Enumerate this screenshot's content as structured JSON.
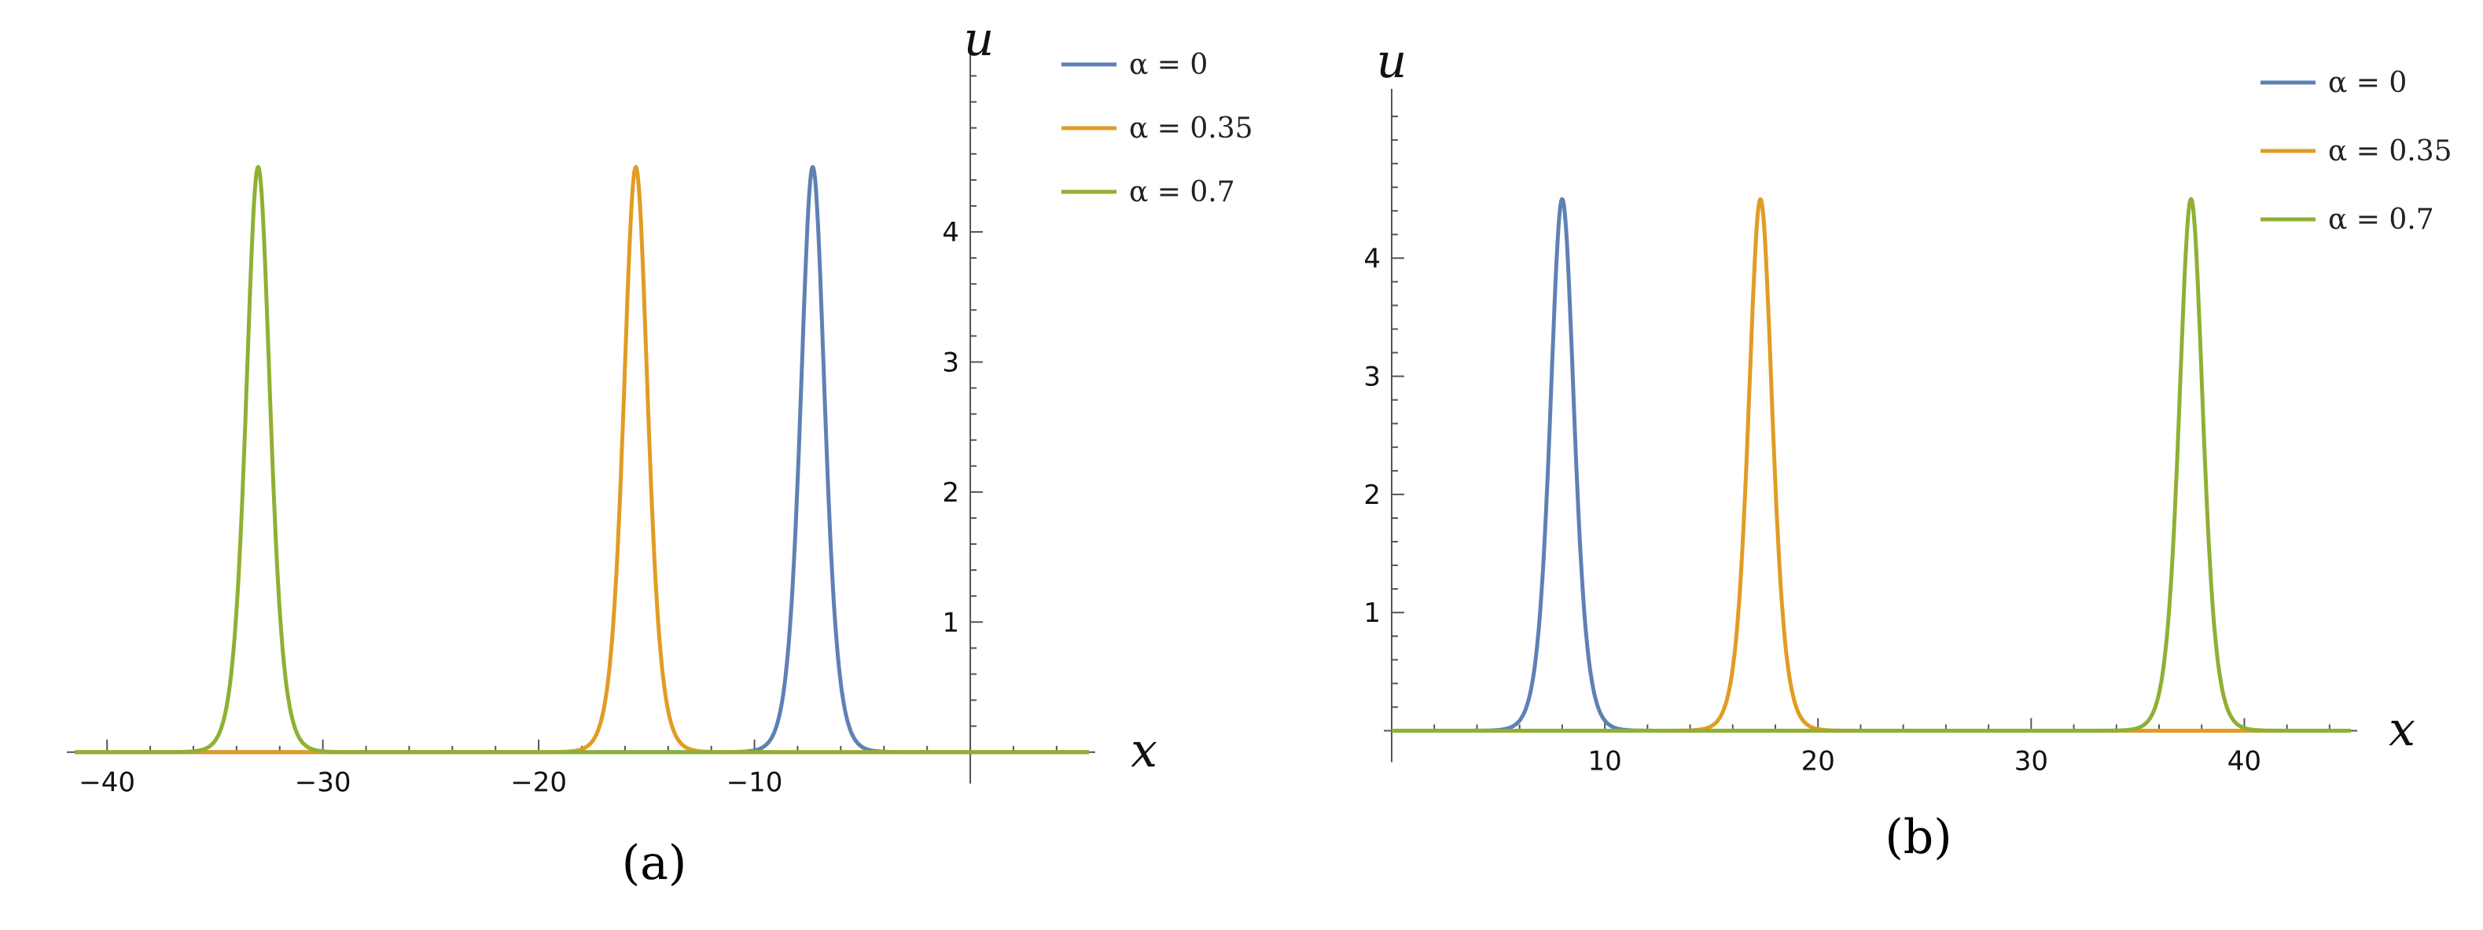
{
  "chart_data": [
    {
      "type": "line",
      "panel_label": "(a)",
      "xlabel": "x",
      "ylabel": "u",
      "xlim": [
        -41.5,
        5.5
      ],
      "ylim": [
        -0.05,
        5.3
      ],
      "x_ticks": [
        -40,
        -30,
        -20,
        -10
      ],
      "x_tick_labels": [
        "−40",
        "−30",
        "−20",
        "−10"
      ],
      "y_ticks": [
        1,
        2,
        3,
        4
      ],
      "y_tick_labels": [
        "1",
        "2",
        "3",
        "4"
      ],
      "y_axis_at": 0,
      "legend_position": "top-right",
      "series": [
        {
          "name": "α = 0",
          "color": "#5e81b5",
          "peak_x": -7.3,
          "amplitude": 4.5,
          "width": 0.75
        },
        {
          "name": "α = 0.35",
          "color": "#e19c24",
          "peak_x": -15.5,
          "amplitude": 4.5,
          "width": 0.75
        },
        {
          "name": "α = 0.7",
          "color": "#8fb032",
          "peak_x": -33.0,
          "amplitude": 4.5,
          "width": 0.75
        }
      ]
    },
    {
      "type": "line",
      "panel_label": "(b)",
      "xlabel": "x",
      "ylabel": "u",
      "xlim": [
        0,
        45
      ],
      "ylim": [
        -0.05,
        5.3
      ],
      "x_ticks": [
        10,
        20,
        30,
        40
      ],
      "x_tick_labels": [
        "10",
        "20",
        "30",
        "40"
      ],
      "y_ticks": [
        1,
        2,
        3,
        4
      ],
      "y_tick_labels": [
        "1",
        "2",
        "3",
        "4"
      ],
      "y_axis_at": 0,
      "legend_position": "top-right",
      "series": [
        {
          "name": "α = 0",
          "color": "#5e81b5",
          "peak_x": 8.0,
          "amplitude": 4.5,
          "width": 0.75
        },
        {
          "name": "α = 0.35",
          "color": "#e19c24",
          "peak_x": 17.3,
          "amplitude": 4.5,
          "width": 0.75
        },
        {
          "name": "α = 0.7",
          "color": "#8fb032",
          "peak_x": 37.5,
          "amplitude": 4.5,
          "width": 0.75
        }
      ]
    }
  ]
}
